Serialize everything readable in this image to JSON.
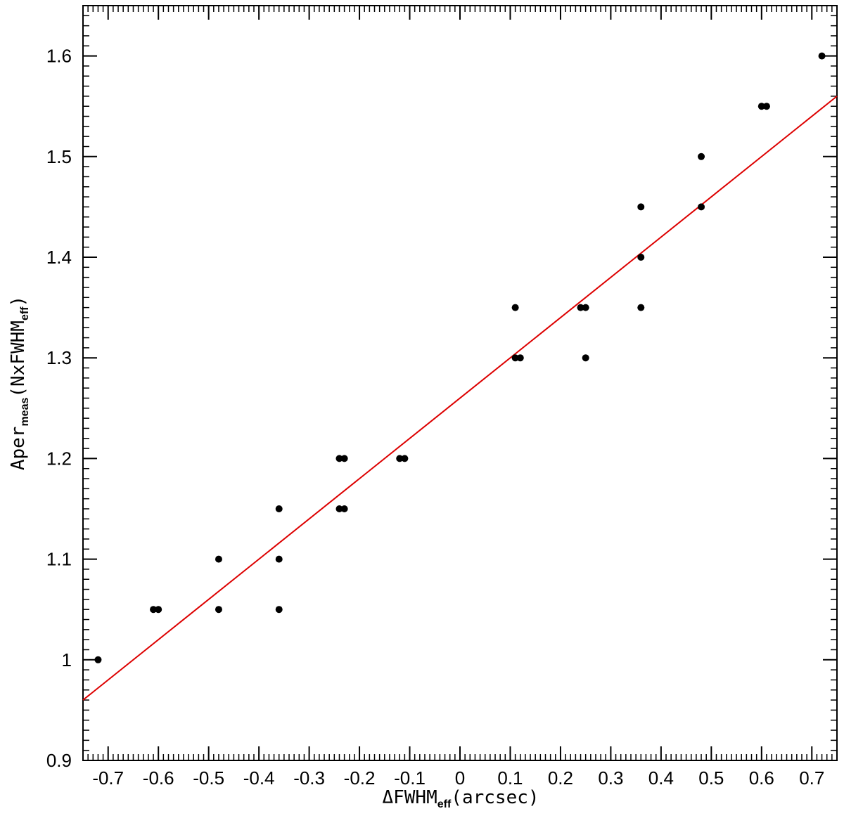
{
  "chart_data": {
    "type": "scatter",
    "title": "",
    "xlabel": {
      "prefix": "ΔFWHM",
      "sub": "eff",
      "suffix": "(arcsec)"
    },
    "ylabel": {
      "prefix": "Aper",
      "sub": "meas",
      "middle": "(NxFWHM",
      "sub2": "eff",
      "suffix": ")"
    },
    "xlim": [
      -0.75,
      0.75
    ],
    "ylim": [
      0.9,
      1.65
    ],
    "x_ticks": [
      -0.7,
      -0.6,
      -0.5,
      -0.4,
      -0.3,
      -0.2,
      -0.1,
      0,
      0.1,
      0.2,
      0.3,
      0.4,
      0.5,
      0.6,
      0.7
    ],
    "x_tick_labels": [
      "-0.7",
      "-0.6",
      "-0.5",
      "-0.4",
      "-0.3",
      "-0.2",
      "-0.1",
      "0",
      "0.1",
      "0.2",
      "0.3",
      "0.4",
      "0.5",
      "0.6",
      "0.7"
    ],
    "y_ticks": [
      0.9,
      1.0,
      1.1,
      1.2,
      1.3,
      1.4,
      1.5,
      1.6
    ],
    "y_tick_labels": [
      "0.9",
      "1",
      "1.1",
      "1.2",
      "1.3",
      "1.4",
      "1.5",
      "1.6"
    ],
    "grid": false,
    "series": [
      {
        "marker_color": "#000000",
        "points": [
          [
            -0.72,
            1.0
          ],
          [
            -0.61,
            1.05
          ],
          [
            -0.6,
            1.05
          ],
          [
            -0.48,
            1.1
          ],
          [
            -0.48,
            1.05
          ],
          [
            -0.36,
            1.15
          ],
          [
            -0.36,
            1.1
          ],
          [
            -0.36,
            1.05
          ],
          [
            -0.24,
            1.2
          ],
          [
            -0.23,
            1.2
          ],
          [
            -0.24,
            1.15
          ],
          [
            -0.23,
            1.15
          ],
          [
            -0.12,
            1.2
          ],
          [
            -0.11,
            1.2
          ],
          [
            0.11,
            1.35
          ],
          [
            0.11,
            1.3
          ],
          [
            0.12,
            1.3
          ],
          [
            0.24,
            1.35
          ],
          [
            0.25,
            1.35
          ],
          [
            0.25,
            1.3
          ],
          [
            0.36,
            1.45
          ],
          [
            0.36,
            1.4
          ],
          [
            0.36,
            1.35
          ],
          [
            0.48,
            1.5
          ],
          [
            0.48,
            1.45
          ],
          [
            0.6,
            1.55
          ],
          [
            0.61,
            1.55
          ],
          [
            0.72,
            1.6
          ]
        ]
      }
    ],
    "fit_line": {
      "color": "#dd0000",
      "x": [
        -0.75,
        0.75
      ],
      "y": [
        0.96,
        1.56
      ]
    }
  }
}
